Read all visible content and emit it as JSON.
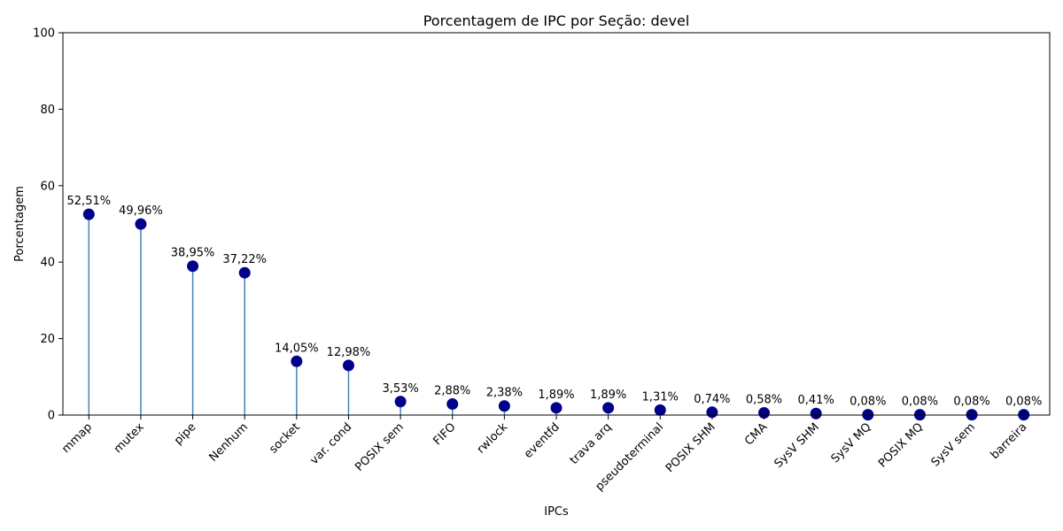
{
  "chart_data": {
    "type": "lollipop",
    "title": "Porcentagem de IPC por Seção: devel",
    "xlabel": "IPCs",
    "ylabel": "Porcentagem",
    "ylim": [
      0,
      100
    ],
    "yticks": [
      0,
      20,
      40,
      60,
      80,
      100
    ],
    "grid": false,
    "legend": "none",
    "colors": {
      "marker": "#00008b",
      "stem": "#4682b4"
    },
    "categories": [
      "mmap",
      "mutex",
      "pipe",
      "Nenhum",
      "socket",
      "var. cond",
      "POSIX sem",
      "FIFO",
      "rwlock",
      "eventfd",
      "trava arq",
      "pseudoterminal",
      "POSIX SHM",
      "CMA",
      "SysV SHM",
      "SysV MQ",
      "POSIX MQ",
      "SysV sem",
      "barreira"
    ],
    "values": [
      52.51,
      49.96,
      38.95,
      37.22,
      14.05,
      12.98,
      3.53,
      2.88,
      2.38,
      1.89,
      1.89,
      1.31,
      0.74,
      0.58,
      0.41,
      0.08,
      0.08,
      0.08,
      0.08
    ],
    "data_labels": [
      "52,51%",
      "49,96%",
      "38,95%",
      "37,22%",
      "14,05%",
      "12,98%",
      "3,53%",
      "2,88%",
      "2,38%",
      "1,89%",
      "1,89%",
      "1,31%",
      "0,74%",
      "0,58%",
      "0,41%",
      "0,08%",
      "0,08%",
      "0,08%",
      "0,08%"
    ]
  }
}
